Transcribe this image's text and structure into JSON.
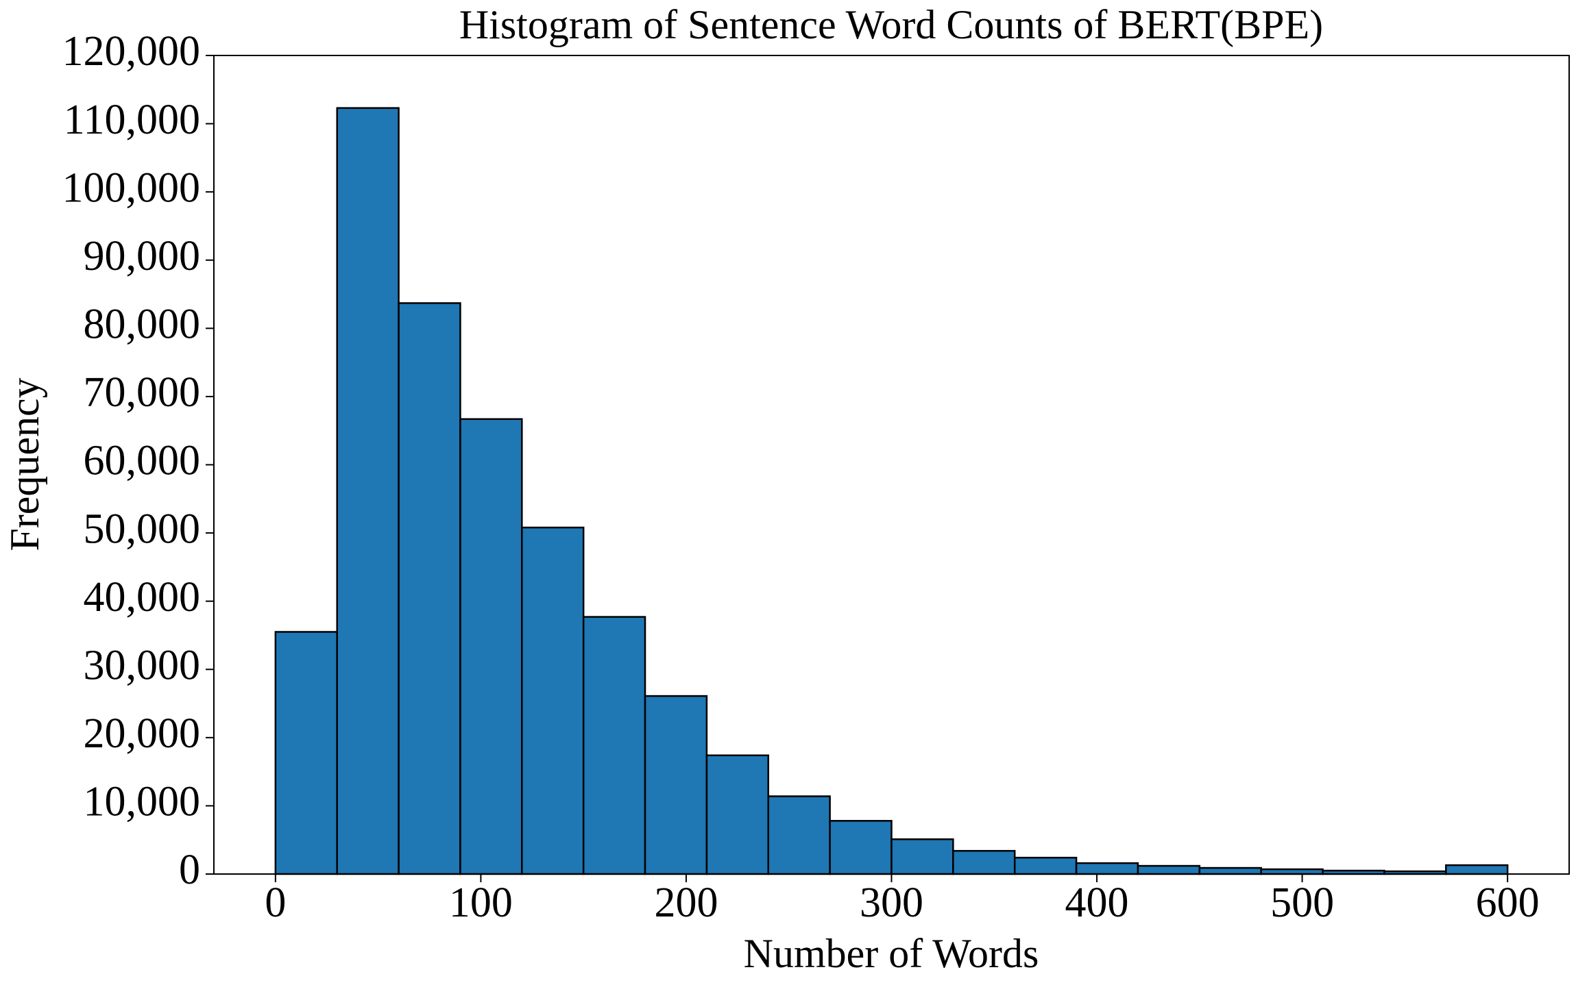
{
  "chart_data": {
    "type": "histogram",
    "title": "Histogram of Sentence Word Counts of BERT(BPE)",
    "x_label": "Number of Words",
    "y_label": "Frequency",
    "bins": [
      0,
      30,
      60,
      90,
      120,
      150,
      180,
      210,
      240,
      270,
      300,
      330,
      360,
      390,
      420,
      450,
      480,
      510,
      540,
      570,
      600
    ],
    "values": [
      35500,
      112300,
      83700,
      66700,
      50800,
      37700,
      26100,
      17400,
      11400,
      7800,
      5100,
      3400,
      2400,
      1600,
      1200,
      900,
      700,
      500,
      400,
      1300
    ],
    "color": "#1f77b4",
    "edgecolor": "#000000",
    "xlim": [
      -30,
      630
    ],
    "xticks": [
      0,
      100,
      200,
      300,
      400,
      500,
      600
    ],
    "ylim": [
      0,
      120000
    ],
    "yticks": [
      0,
      {
        "value": 10000,
        "label": "10,000"
      },
      {
        "value": 20000,
        "label": "20,000"
      },
      {
        "value": 30000,
        "label": "30,000"
      },
      {
        "value": 40000,
        "label": "40,000"
      },
      {
        "value": 50000,
        "label": "50,000"
      },
      {
        "value": 60000,
        "label": "60,000"
      },
      {
        "value": 70000,
        "label": "70,000"
      },
      {
        "value": 80000,
        "label": "80,000"
      },
      {
        "value": 90000,
        "label": "90,000"
      },
      {
        "value": 100000,
        "label": "100,000"
      },
      {
        "value": 110000,
        "label": "110,000"
      },
      {
        "value": 120000,
        "label": "120,000"
      }
    ]
  }
}
